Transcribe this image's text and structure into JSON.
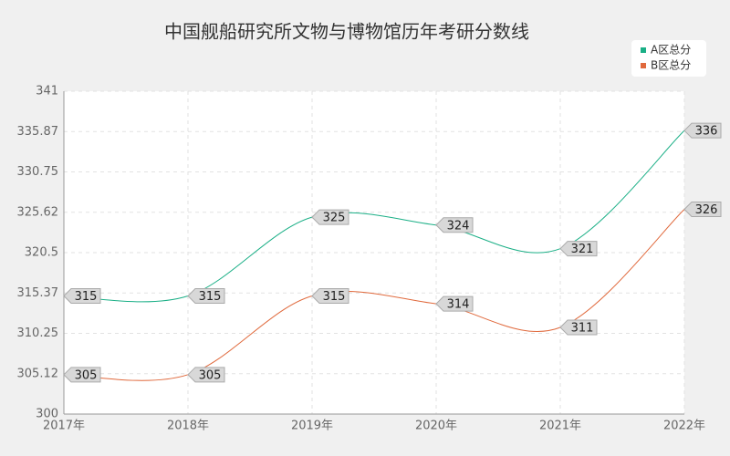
{
  "chart_data": {
    "type": "line",
    "title": "中国舰船研究所文物与博物馆历年考研分数线",
    "categories": [
      "2017年",
      "2018年",
      "2019年",
      "2020年",
      "2021年",
      "2022年"
    ],
    "series": [
      {
        "name": "A区总分",
        "color": "#1aaf86",
        "values": [
          315,
          315,
          325,
          324,
          321,
          336
        ]
      },
      {
        "name": "B区总分",
        "color": "#e0693c",
        "values": [
          305,
          305,
          315,
          314,
          311,
          326
        ]
      }
    ],
    "ylim": [
      300,
      341
    ],
    "yticks": [
      300,
      305.12,
      310.25,
      315.37,
      320.5,
      325.62,
      330.75,
      335.87,
      341
    ],
    "grid": true,
    "legend": "top-right"
  }
}
